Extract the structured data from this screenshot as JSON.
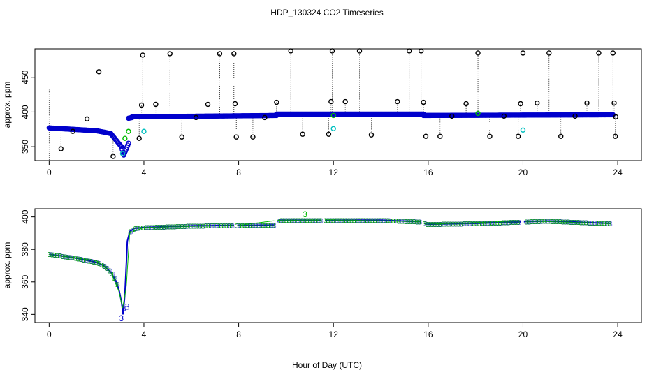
{
  "chart_data": [
    {
      "type": "scatter",
      "title": "HDP_130324  CO2 Timeseries",
      "xlabel": "",
      "ylabel": "approx. ppm",
      "xlim": [
        -0.6,
        25
      ],
      "ylim": [
        330,
        491
      ],
      "x_ticks": [
        0,
        4,
        8,
        12,
        16,
        20,
        24
      ],
      "x_tick_labels": [
        "0",
        "4",
        "8",
        "12",
        "16",
        "20",
        "24"
      ],
      "y_ticks": [
        350,
        400,
        450
      ],
      "y_tick_labels": [
        "350",
        "400",
        "450"
      ],
      "series": [
        {
          "name": "raw max (black circles)",
          "color": "#000000",
          "points": [
            [
              0.5,
              347
            ],
            [
              1.0,
              372
            ],
            [
              1.6,
              390
            ],
            [
              2.1,
              458
            ],
            [
              2.7,
              336
            ],
            [
              3.9,
              410
            ],
            [
              3.95,
              482
            ],
            [
              3.8,
              362
            ],
            [
              4.5,
              411
            ],
            [
              5.1,
              484
            ],
            [
              5.6,
              364
            ],
            [
              6.2,
              392
            ],
            [
              6.7,
              411
            ],
            [
              7.2,
              484
            ],
            [
              7.8,
              484
            ],
            [
              7.85,
              412
            ],
            [
              7.9,
              364
            ],
            [
              8.6,
              364
            ],
            [
              9.1,
              392
            ],
            [
              9.6,
              414
            ],
            [
              10.2,
              488
            ],
            [
              10.7,
              368
            ],
            [
              11.8,
              368
            ],
            [
              11.9,
              415
            ],
            [
              11.95,
              488
            ],
            [
              12.5,
              415
            ],
            [
              13.1,
              488
            ],
            [
              13.6,
              367
            ],
            [
              14.7,
              415
            ],
            [
              15.2,
              488
            ],
            [
              15.7,
              488
            ],
            [
              15.8,
              414
            ],
            [
              15.9,
              365
            ],
            [
              16.5,
              365
            ],
            [
              17.0,
              394
            ],
            [
              17.6,
              412
            ],
            [
              18.1,
              485
            ],
            [
              18.6,
              365
            ],
            [
              19.2,
              394
            ],
            [
              19.8,
              365
            ],
            [
              19.9,
              412
            ],
            [
              20.0,
              485
            ],
            [
              20.6,
              413
            ],
            [
              21.1,
              485
            ],
            [
              21.6,
              365
            ],
            [
              22.2,
              394
            ],
            [
              22.7,
              413
            ],
            [
              23.2,
              485
            ],
            [
              23.8,
              485
            ],
            [
              23.85,
              413
            ],
            [
              23.9,
              365
            ],
            [
              23.92,
              393
            ]
          ]
        },
        {
          "name": "raw min (cyan circles)",
          "color": "#00bfbf",
          "points": [
            [
              3.1,
              340
            ],
            [
              4.0,
              372
            ],
            [
              12.0,
              376
            ],
            [
              20.0,
              374
            ]
          ]
        },
        {
          "name": "green circles",
          "color": "#00bb00",
          "points": [
            [
              3.2,
              362
            ],
            [
              3.35,
              372
            ],
            [
              12.0,
              395
            ],
            [
              18.1,
              398
            ]
          ]
        },
        {
          "name": "smoothed (blue)",
          "color": "#0000cc",
          "segments": [
            {
              "x0": 0,
              "x1": 1.0,
              "y0": 377,
              "y1": 375
            },
            {
              "x0": 1.0,
              "x1": 2.0,
              "y0": 375,
              "y1": 373
            },
            {
              "x0": 2.0,
              "x1": 2.6,
              "y0": 373,
              "y1": 369
            },
            {
              "x0": 2.6,
              "x1": 3.05,
              "y0": 369,
              "y1": 350
            },
            {
              "x0": 3.05,
              "x1": 3.15,
              "y0": 350,
              "y1": 338
            },
            {
              "x0": 3.15,
              "x1": 3.35,
              "y0": 338,
              "y1": 355
            },
            {
              "x0": 3.35,
              "x1": 3.5,
              "y0": 391,
              "y1": 392
            },
            {
              "x0": 3.5,
              "x1": 9.6,
              "y0": 393,
              "y1": 395
            },
            {
              "x0": 9.6,
              "x1": 15.8,
              "y0": 397,
              "y1": 397
            },
            {
              "x0": 15.8,
              "x1": 23.8,
              "y0": 395,
              "y1": 396
            }
          ]
        }
      ]
    },
    {
      "type": "line",
      "title": "",
      "xlabel": "Hour of Day (UTC)",
      "ylabel": "approx. ppm",
      "xlim": [
        -0.6,
        25
      ],
      "ylim": [
        335,
        405
      ],
      "x_ticks": [
        0,
        4,
        8,
        12,
        16,
        20,
        24
      ],
      "x_tick_labels": [
        "0",
        "4",
        "8",
        "12",
        "16",
        "20",
        "24"
      ],
      "y_ticks": [
        340,
        360,
        380,
        400
      ],
      "y_tick_labels": [
        "340",
        "360",
        "380",
        "400"
      ],
      "glyph": "3",
      "series": [
        {
          "name": "smoothed CO2",
          "color": "#0000cc",
          "x": [
            0.0,
            0.5,
            1.0,
            1.5,
            2.0,
            2.3,
            2.6,
            2.8,
            2.95,
            3.05,
            3.12,
            3.2,
            3.3,
            3.4,
            3.6,
            4.0,
            6.0,
            7.8,
            8.2,
            9.5,
            9.7,
            11.5,
            12.0,
            14.0,
            15.7,
            15.9,
            18.0,
            20.0,
            21.0,
            23.7
          ],
          "y": [
            377,
            376,
            375,
            373.5,
            372,
            370,
            366,
            361,
            355,
            348,
            340,
            353,
            385,
            391,
            393,
            393.5,
            394.5,
            394.8,
            394.8,
            395,
            398,
            398,
            398,
            398,
            397,
            395.5,
            396,
            397,
            397.5,
            396
          ],
          "gaps_after_x": [
            7.8,
            9.5,
            11.5,
            15.7,
            19.9
          ]
        },
        {
          "name": "green overlay",
          "color": "#00bb00",
          "x": [
            0.0,
            1.0,
            2.0,
            2.6,
            2.95,
            3.1,
            3.25,
            3.4,
            4.0,
            8.0,
            9.7,
            12.0,
            15.7,
            15.9,
            20.0,
            23.7
          ],
          "y": [
            377,
            375,
            373,
            366,
            354,
            344,
            356,
            390,
            393.5,
            394.8,
            398,
            398.2,
            397,
            395.5,
            397.5,
            396
          ]
        }
      ],
      "glyph_annotations": [
        {
          "x": 3.05,
          "y": 338,
          "color": "#0000cc"
        },
        {
          "x": 3.15,
          "y": 344,
          "color": "#0000cc"
        },
        {
          "x": 3.3,
          "y": 345,
          "color": "#0000cc"
        },
        {
          "x": 10.8,
          "y": 402,
          "color": "#00bb00"
        }
      ]
    }
  ]
}
